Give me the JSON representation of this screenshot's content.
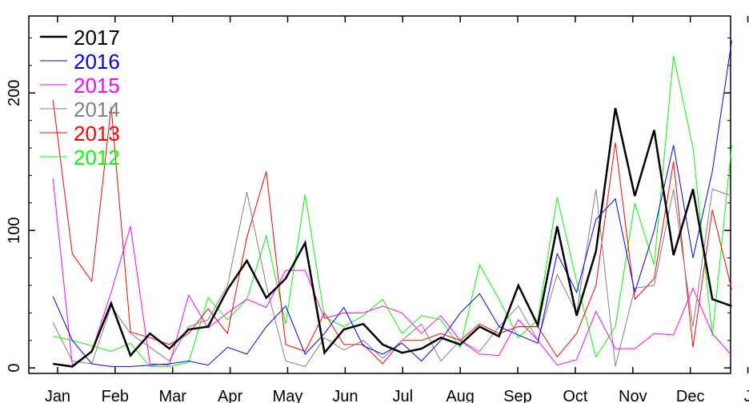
{
  "chart_data": {
    "type": "line",
    "x_ticks": [
      "Jan",
      "Feb",
      "Mar",
      "Apr",
      "May",
      "Jun",
      "Jul",
      "Aug",
      "Sep",
      "Oct",
      "Nov",
      "Dec",
      "J"
    ],
    "x_range": [
      0.5,
      12.7
    ],
    "y_ticks": [
      0,
      100,
      200
    ],
    "ylim": [
      -4,
      256
    ],
    "grid": false,
    "legend_position": "top-left",
    "series": [
      {
        "name": "2017",
        "color": "#000000",
        "width": 2.5,
        "values": [
          3,
          1,
          12,
          47,
          9,
          25,
          14,
          28,
          30,
          57,
          78,
          51,
          65,
          91,
          11,
          28,
          32,
          17,
          11,
          14,
          22,
          17,
          30,
          23,
          60,
          31,
          103,
          38,
          85,
          189,
          125,
          173,
          82,
          130,
          50,
          45
        ]
      },
      {
        "name": "2016",
        "color": "#0000ff",
        "width": 1,
        "values": [
          52,
          20,
          3,
          1,
          1,
          2,
          3,
          5,
          2,
          15,
          10,
          30,
          45,
          10,
          25,
          44,
          16,
          10,
          18,
          5,
          20,
          40,
          54,
          30,
          24,
          18,
          83,
          55,
          108,
          123,
          55,
          100,
          162,
          80,
          143,
          238
        ]
      },
      {
        "name": "2015",
        "color": "#ff00ff",
        "width": 1,
        "values": [
          138,
          2,
          12,
          55,
          103,
          3,
          2,
          53,
          29,
          40,
          50,
          44,
          71,
          71,
          36,
          40,
          40,
          45,
          40,
          25,
          38,
          20,
          10,
          9,
          35,
          20,
          2,
          6,
          41,
          14,
          14,
          25,
          24,
          58,
          25,
          9
        ]
      },
      {
        "name": "2014",
        "color": "#808080",
        "width": 1,
        "values": [
          33,
          5,
          3,
          45,
          25,
          15,
          5,
          30,
          35,
          60,
          128,
          60,
          5,
          1,
          22,
          13,
          20,
          7,
          20,
          32,
          5,
          20,
          12,
          30,
          45,
          20,
          68,
          40,
          130,
          1,
          58,
          60,
          130,
          30,
          130,
          125
        ]
      },
      {
        "name": "2013",
        "color": "#ff0000",
        "width": 1,
        "values": [
          195,
          83,
          63,
          190,
          26,
          22,
          17,
          25,
          43,
          25,
          95,
          143,
          17,
          12,
          40,
          17,
          17,
          3,
          20,
          20,
          25,
          20,
          32,
          25,
          30,
          30,
          8,
          25,
          60,
          164,
          50,
          65,
          150,
          15,
          115,
          57
        ]
      },
      {
        "name": "2012",
        "color": "#00ff00",
        "width": 1,
        "values": [
          23,
          20,
          16,
          12,
          18,
          1,
          1,
          4,
          51,
          35,
          50,
          96,
          32,
          126,
          37,
          30,
          38,
          50,
          25,
          38,
          35,
          15,
          75,
          50,
          22,
          35,
          124,
          63,
          8,
          30,
          120,
          75,
          227,
          160,
          23,
          162
        ]
      }
    ]
  }
}
